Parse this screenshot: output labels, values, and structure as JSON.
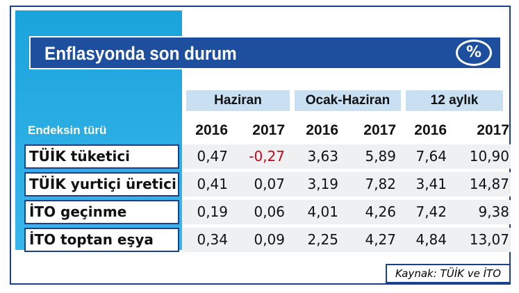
{
  "header": {
    "title": "Enflasyonda son durum",
    "icon": "%"
  },
  "table": {
    "groups": [
      "Haziran",
      "Ocak-Haziran",
      "12 aylık"
    ],
    "row_header": "Endeksin türü",
    "years": [
      "2016",
      "2017",
      "2016",
      "2017",
      "2016",
      "2017"
    ],
    "rows": [
      [
        "TÜİK tüketici",
        "0,47",
        "-0,27",
        "3,63",
        "5,89",
        "7,64",
        "10,90"
      ],
      [
        "TÜİK yurtiçi üretici",
        "0,41",
        "0,07",
        "3,19",
        "7,82",
        "3,41",
        "14,87"
      ],
      [
        "İTO geçinme",
        "0,19",
        "0,06",
        "4,01",
        "4,26",
        "7,42",
        "9,38"
      ],
      [
        "İTO toptan eşya",
        "0,34",
        "0,09",
        "2,25",
        "4,27",
        "4,84",
        "13,07"
      ]
    ]
  },
  "source": "Kaynak: TÜİK ve İTO"
}
